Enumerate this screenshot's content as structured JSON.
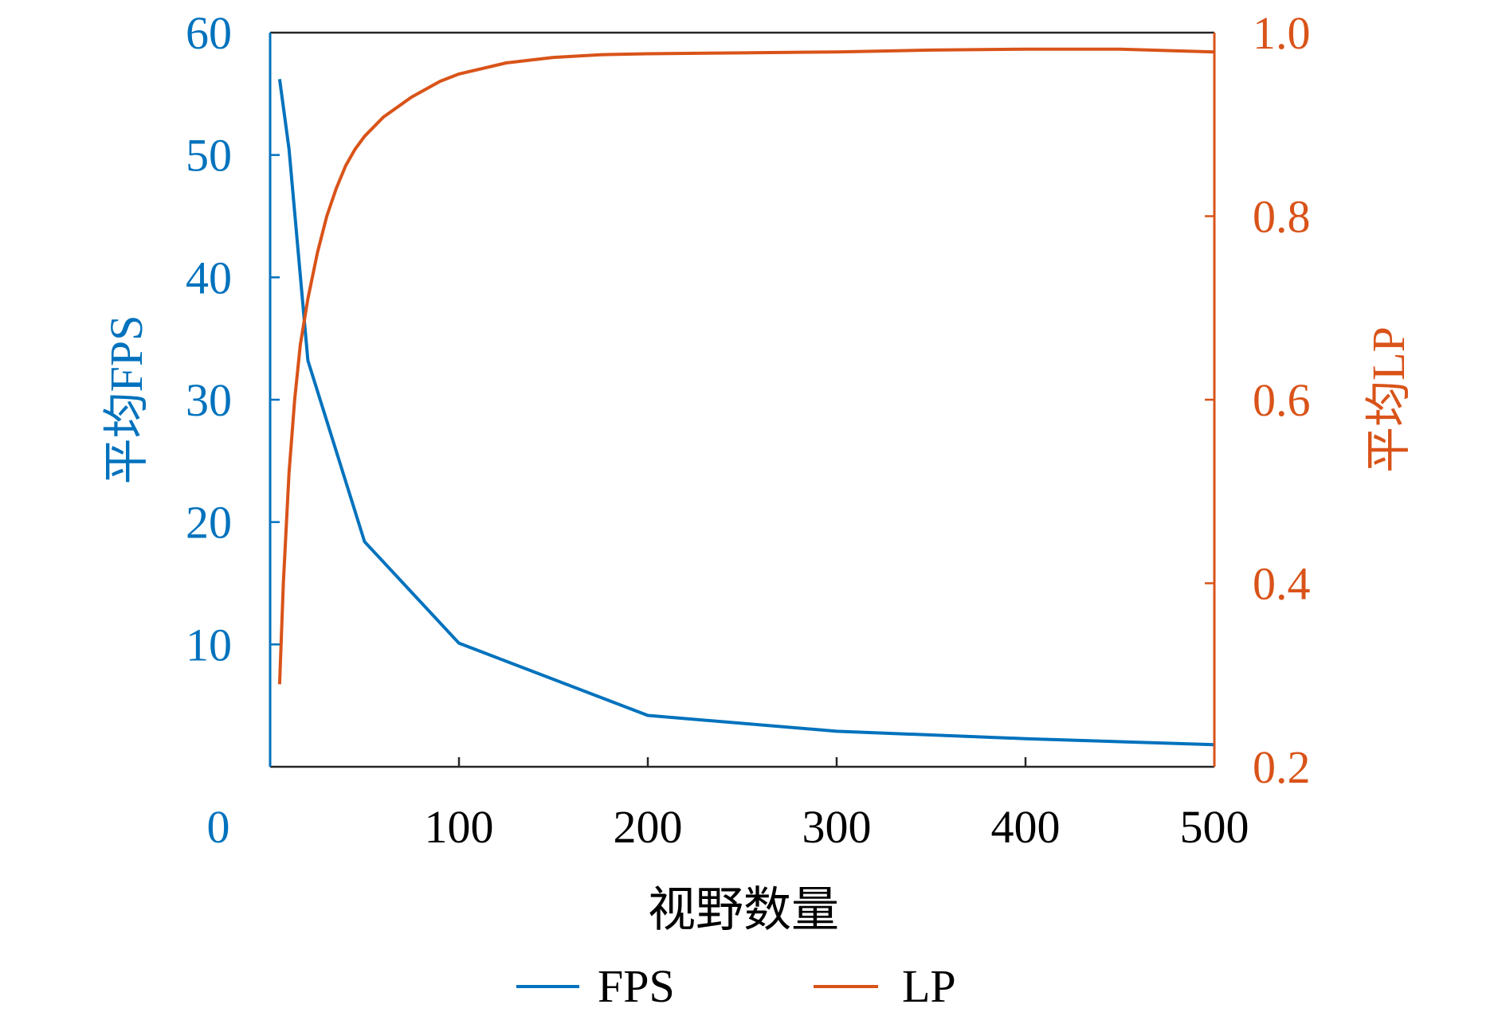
{
  "chart_data": {
    "type": "line",
    "xlabel": "视野数量",
    "ylabel_left": "平均FPS",
    "ylabel_right": "平均LP",
    "xlim": [
      0,
      500
    ],
    "ylim_left": [
      0,
      60
    ],
    "ylim_right": [
      0.2,
      1.0
    ],
    "x_ticks": [
      "0",
      "100",
      "200",
      "300",
      "400",
      "500"
    ],
    "y_left_ticks": [
      "10",
      "20",
      "30",
      "40",
      "50",
      "60"
    ],
    "y_right_ticks": [
      "0.2",
      "0.4",
      "0.6",
      "0.8",
      "1.0"
    ],
    "grid": false,
    "legend_position": "bottom",
    "colors": {
      "FPS": "#0072BD",
      "LP": "#D95319",
      "axis": "#262626"
    },
    "series": [
      {
        "name": "FPS",
        "axis": "left",
        "x": [
          5,
          10,
          20,
          50,
          100,
          200,
          300,
          400,
          500
        ],
        "y": [
          56.2,
          50.5,
          33.2,
          18.4,
          10.1,
          4.2,
          2.9,
          2.3,
          1.8
        ]
      },
      {
        "name": "LP",
        "axis": "right",
        "x": [
          5,
          7,
          10,
          13,
          16,
          20,
          25,
          30,
          35,
          40,
          45,
          50,
          60,
          75,
          90,
          100,
          125,
          150,
          175,
          200,
          250,
          300,
          350,
          400,
          450,
          500
        ],
        "y": [
          0.29,
          0.4,
          0.52,
          0.6,
          0.66,
          0.71,
          0.76,
          0.8,
          0.83,
          0.855,
          0.873,
          0.887,
          0.908,
          0.93,
          0.947,
          0.955,
          0.967,
          0.973,
          0.976,
          0.977,
          0.978,
          0.979,
          0.981,
          0.982,
          0.982,
          0.979
        ]
      }
    ]
  }
}
